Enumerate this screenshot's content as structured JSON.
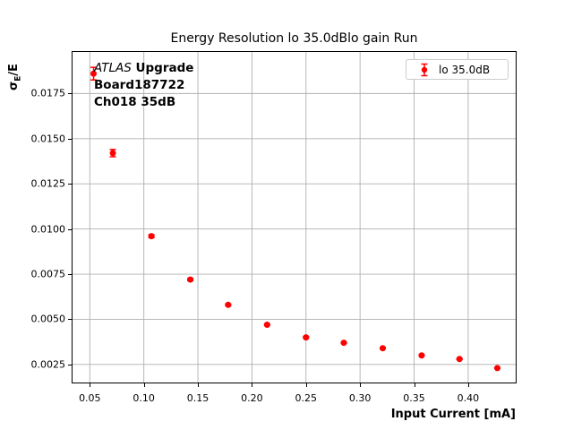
{
  "header": {
    "title": "Energy Resolution lo 35.0dBlo gain Run"
  },
  "axes": {
    "xlabel": "Input Current [mA]",
    "ylabel_sigma": "σ",
    "ylabel_subscript": "E",
    "ylabel_suffix": "/E"
  },
  "annotation": {
    "experiment": "ATLAS",
    "line1_rest": "Upgrade",
    "line2": "Board187722",
    "line3": "Ch018 35dB"
  },
  "legend": {
    "entry": "lo 35.0dB"
  },
  "colors": {
    "marker": "#ff0000",
    "grid": "#b0b0b0",
    "axis": "#000000",
    "legend_border": "#cccccc",
    "background": "#ffffff"
  },
  "chart_data": {
    "type": "scatter",
    "subtype": "errorbar",
    "title": "Energy Resolution lo 35.0dBlo gain Run",
    "xlabel": "Input Current [mA]",
    "ylabel": "σE/E",
    "xlim": [
      0.034,
      0.444
    ],
    "ylim": [
      0.0015,
      0.0198
    ],
    "xticks": [
      0.05,
      0.1,
      0.15,
      0.2,
      0.25,
      0.3,
      0.35,
      0.4
    ],
    "xtick_labels": [
      "0.05",
      "0.10",
      "0.15",
      "0.20",
      "0.25",
      "0.30",
      "0.35",
      "0.40"
    ],
    "yticks": [
      0.0025,
      0.005,
      0.0075,
      0.01,
      0.0125,
      0.015,
      0.0175
    ],
    "ytick_labels": [
      "0.0025",
      "0.0050",
      "0.0075",
      "0.0100",
      "0.0125",
      "0.0150",
      "0.0175"
    ],
    "grid": true,
    "legend_position": "upper right",
    "series": [
      {
        "name": "lo 35.0dB",
        "color": "#ff0000",
        "marker": "circle",
        "x": [
          0.0535,
          0.0713,
          0.107,
          0.143,
          0.178,
          0.214,
          0.25,
          0.285,
          0.321,
          0.357,
          0.392,
          0.427
        ],
        "y": [
          0.0186,
          0.0142,
          0.0096,
          0.0072,
          0.0058,
          0.0047,
          0.004,
          0.0037,
          0.0034,
          0.003,
          0.0028,
          0.0023
        ],
        "yerr": [
          0.00035,
          0.0002,
          8e-05,
          6e-05,
          5e-05,
          4e-05,
          4e-05,
          3e-05,
          3e-05,
          3e-05,
          2e-05,
          2e-05
        ]
      }
    ]
  }
}
